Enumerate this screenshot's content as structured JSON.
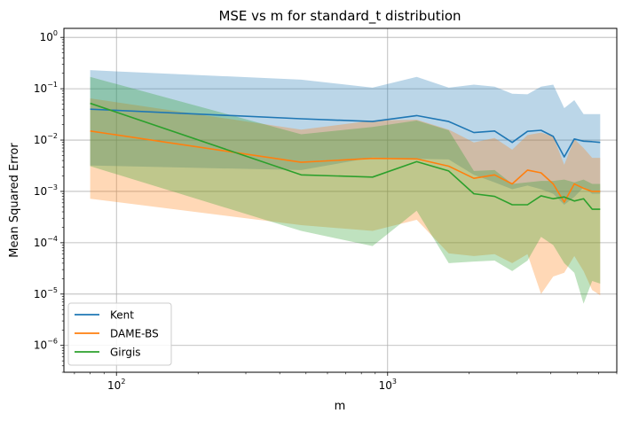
{
  "chart_data": {
    "type": "line",
    "title": "MSE vs m for standard_t distribution",
    "xlabel": "m",
    "ylabel": "Mean Squared Error",
    "xscale": "log",
    "yscale": "log",
    "xlim": [
      64,
      7000
    ],
    "ylim": [
      3e-07,
      1.5
    ],
    "grid": true,
    "legend_position": "lower-left",
    "x_ticks": [
      {
        "value": 100,
        "base": "10",
        "exp": "2"
      },
      {
        "value": 1000,
        "base": "10",
        "exp": "3"
      }
    ],
    "y_ticks": [
      {
        "value": 1e-06,
        "base": "10",
        "exp": "−6"
      },
      {
        "value": 1e-05,
        "base": "10",
        "exp": "−5"
      },
      {
        "value": 0.0001,
        "base": "10",
        "exp": "−4"
      },
      {
        "value": 0.001,
        "base": "10",
        "exp": "−3"
      },
      {
        "value": 0.01,
        "base": "10",
        "exp": "−2"
      },
      {
        "value": 0.1,
        "base": "10",
        "exp": "−1"
      },
      {
        "value": 1,
        "base": "10",
        "exp": "0"
      }
    ],
    "x": [
      80,
      480,
      880,
      1280,
      1680,
      2080,
      2480,
      2880,
      3280,
      3680,
      4080,
      4480,
      4880,
      5280,
      5680,
      6080
    ],
    "series": [
      {
        "name": "Kent",
        "color": "#1f77b4",
        "values": [
          0.04,
          0.026,
          0.023,
          0.03,
          0.023,
          0.014,
          0.015,
          0.009,
          0.0148,
          0.0155,
          0.0118,
          0.0047,
          0.0105,
          0.0095,
          0.0093,
          0.009
        ],
        "upper": [
          0.23,
          0.15,
          0.105,
          0.17,
          0.105,
          0.12,
          0.11,
          0.08,
          0.078,
          0.11,
          0.12,
          0.042,
          0.06,
          0.032,
          0.032,
          0.032
        ],
        "lower": [
          0.0032,
          0.0026,
          0.0046,
          0.0043,
          0.0042,
          0.0021,
          0.0015,
          0.0011,
          0.0013,
          0.0011,
          0.0009,
          0.00055,
          0.00078,
          0.0012,
          0.0009,
          0.0009
        ]
      },
      {
        "name": "DAME-BS",
        "color": "#ff7f0e",
        "values": [
          0.015,
          0.0037,
          0.0044,
          0.0043,
          0.0031,
          0.0018,
          0.0021,
          0.0014,
          0.0026,
          0.0023,
          0.0014,
          0.00062,
          0.0014,
          0.00115,
          0.001,
          0.001
        ],
        "upper": [
          0.065,
          0.016,
          0.024,
          0.025,
          0.016,
          0.009,
          0.011,
          0.0065,
          0.0125,
          0.014,
          0.0118,
          0.0033,
          0.0104,
          0.007,
          0.0045,
          0.0045
        ],
        "lower": [
          0.00072,
          0.00022,
          0.00017,
          0.00028,
          6.2e-05,
          5.5e-05,
          6e-05,
          4e-05,
          6e-05,
          1e-05,
          2.2e-05,
          2.6e-05,
          5.5e-05,
          2.8e-05,
          1.2e-05,
          9.5e-06
        ]
      },
      {
        "name": "Girgis",
        "color": "#2ca02c",
        "values": [
          0.052,
          0.0021,
          0.0019,
          0.0038,
          0.0025,
          0.0009,
          0.0008,
          0.00055,
          0.00055,
          0.00082,
          0.00072,
          0.00078,
          0.00065,
          0.00072,
          0.00045,
          0.00045
        ],
        "upper": [
          0.17,
          0.013,
          0.018,
          0.024,
          0.0155,
          0.0025,
          0.0026,
          0.0014,
          0.0015,
          0.0016,
          0.0016,
          0.0017,
          0.0015,
          0.0017,
          0.0014,
          0.0014
        ],
        "lower": [
          0.0031,
          0.00017,
          8.6e-05,
          0.00042,
          4e-05,
          4.3e-05,
          4.5e-05,
          2.8e-05,
          4.5e-05,
          0.00013,
          9e-05,
          4e-05,
          2.6e-05,
          6.5e-06,
          1.8e-05,
          1.6e-05
        ]
      }
    ]
  }
}
